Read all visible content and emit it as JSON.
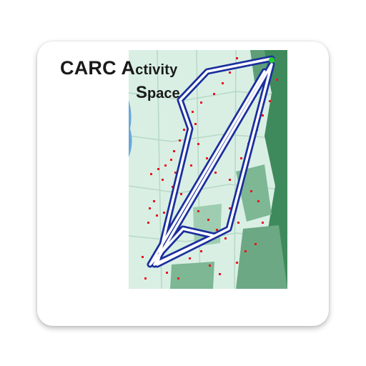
{
  "app_icon": {
    "title_part1": "CARC",
    "title_part2_cap": "A",
    "title_part2_rest": "ctivity",
    "title_part3_cap": "S",
    "title_part3_rest": "pace",
    "colors": {
      "map_background": "#d9efe4",
      "map_dark_green": "#3f8a5c",
      "map_mid_green": "#7db794",
      "water_blue": "#6aa8d8",
      "track_blue": "#1b2f9e",
      "track_white": "#ffffff",
      "points_red": "#e8161e",
      "start_marker": "#22cc33"
    },
    "map_icon": "activity-space-map-icon"
  }
}
